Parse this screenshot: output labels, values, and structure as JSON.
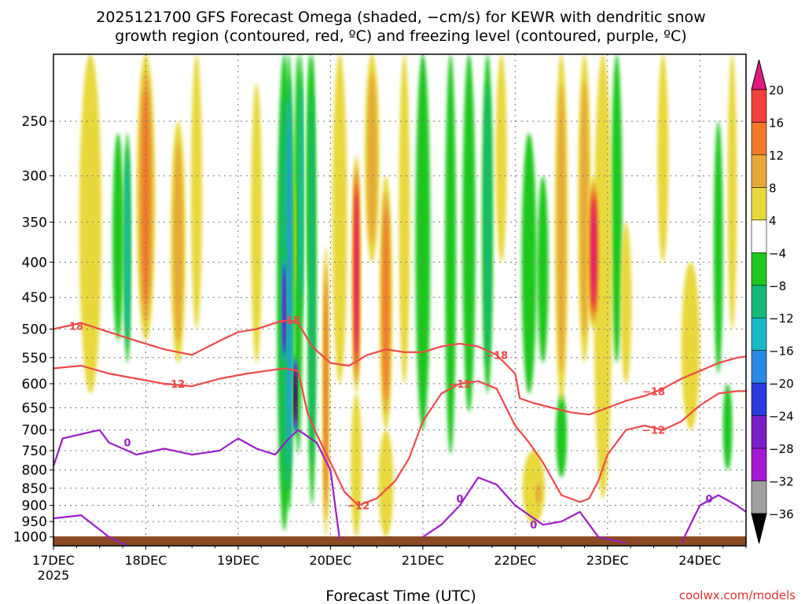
{
  "chart_data": {
    "type": "heatmap",
    "title_line1": "2025121700 GFS Forecast Omega (shaded, −cm/s) for KEWR with dendritic snow",
    "title_line2": "growth region (contoured, red, ºC) and freezing level (contoured, purple, ºC)",
    "xlabel": "Forecast Time (UTC)",
    "ylabel": "",
    "credit": "coolwx.com/models",
    "x_range_days": [
      0,
      7.5
    ],
    "x_ticks": [
      {
        "day": 0,
        "label": "17DEC",
        "sub": "2025"
      },
      {
        "day": 1,
        "label": "18DEC",
        "sub": ""
      },
      {
        "day": 2,
        "label": "19DEC",
        "sub": ""
      },
      {
        "day": 3,
        "label": "20DEC",
        "sub": ""
      },
      {
        "day": 4,
        "label": "21DEC",
        "sub": ""
      },
      {
        "day": 5,
        "label": "22DEC",
        "sub": ""
      },
      {
        "day": 6,
        "label": "23DEC",
        "sub": ""
      },
      {
        "day": 7,
        "label": "24DEC",
        "sub": ""
      }
    ],
    "y_range_hpa": [
      200,
      1030
    ],
    "y_ticks": [
      250,
      300,
      350,
      400,
      450,
      500,
      550,
      600,
      650,
      700,
      750,
      800,
      850,
      900,
      950,
      1000
    ],
    "colorbar": {
      "labels": [
        "20",
        "16",
        "12",
        "8",
        "4",
        "−4",
        "−8",
        "−12",
        "−16",
        "−20",
        "−24",
        "−28",
        "−32",
        "−36"
      ],
      "bins": [
        {
          "range": ">20",
          "color": "#e0197f"
        },
        {
          "range": "16 to 20",
          "color": "#f2403c"
        },
        {
          "range": "12 to 16",
          "color": "#f07a2a"
        },
        {
          "range": "8 to 12",
          "color": "#e6a838"
        },
        {
          "range": "4 to 8",
          "color": "#e8d83a"
        },
        {
          "range": "-4 to 4",
          "color": "#ffffff"
        },
        {
          "range": "-8 to -4",
          "color": "#1ec81e"
        },
        {
          "range": "-12 to -8",
          "color": "#15b876"
        },
        {
          "range": "-16 to -12",
          "color": "#1ab9c8"
        },
        {
          "range": "-20 to -16",
          "color": "#2a88e6"
        },
        {
          "range": "-24 to -20",
          "color": "#2a3adc"
        },
        {
          "range": "-28 to -24",
          "color": "#7a1ec8"
        },
        {
          "range": "-32 to -28",
          "color": "#a519d2"
        },
        {
          "range": "-36 to -32",
          "color": "#a0a0a0"
        },
        {
          "range": "<-36",
          "color": "#000000"
        }
      ]
    },
    "omega_features": [
      {
        "day": 0.4,
        "p_top": 200,
        "p_bot": 620,
        "val": 8,
        "w": 0.12
      },
      {
        "day": 0.7,
        "p_top": 260,
        "p_bot": 520,
        "val": -8,
        "w": 0.06
      },
      {
        "day": 0.8,
        "p_top": 260,
        "p_bot": 560,
        "val": -14,
        "w": 0.04
      },
      {
        "day": 1.0,
        "p_top": 200,
        "p_bot": 520,
        "val": 14,
        "w": 0.1
      },
      {
        "day": 1.35,
        "p_top": 250,
        "p_bot": 560,
        "val": 10,
        "w": 0.08
      },
      {
        "day": 1.55,
        "p_top": 200,
        "p_bot": 500,
        "val": 6,
        "w": 0.06
      },
      {
        "day": 2.2,
        "p_top": 220,
        "p_bot": 560,
        "val": 6,
        "w": 0.06
      },
      {
        "day": 2.5,
        "p_top": 200,
        "p_bot": 980,
        "val": -10,
        "w": 0.08
      },
      {
        "day": 2.55,
        "p_top": 200,
        "p_bot": 920,
        "val": -18,
        "w": 0.05
      },
      {
        "day": 2.65,
        "p_top": 200,
        "p_bot": 760,
        "val": -8,
        "w": 0.05
      },
      {
        "day": 2.78,
        "p_top": 200,
        "p_bot": 440,
        "val": -4.5,
        "w": 0.04
      },
      {
        "day": 2.5,
        "p_top": 380,
        "p_bot": 580,
        "val": -26,
        "w": 0.03
      },
      {
        "day": 2.52,
        "p_top": 480,
        "p_bot": 900,
        "val": -16,
        "w": 0.03
      },
      {
        "day": 2.62,
        "p_top": 540,
        "p_bot": 720,
        "val": -40,
        "w": 0.02
      },
      {
        "day": 2.68,
        "p_top": 200,
        "p_bot": 500,
        "val": -14,
        "w": 0.03
      },
      {
        "day": 2.58,
        "p_top": 300,
        "p_bot": 450,
        "val": 12,
        "w": 0.04
      },
      {
        "day": 2.8,
        "p_top": 200,
        "p_bot": 900,
        "val": -12,
        "w": 0.05
      },
      {
        "day": 2.95,
        "p_top": 380,
        "p_bot": 1000,
        "val": 14,
        "w": 0.04
      },
      {
        "day": 3.1,
        "p_top": 200,
        "p_bot": 600,
        "val": 6,
        "w": 0.08
      },
      {
        "day": 3.28,
        "p_top": 280,
        "p_bot": 620,
        "val": 24,
        "w": 0.05
      },
      {
        "day": 3.28,
        "p_top": 620,
        "p_bot": 1000,
        "val": 6,
        "w": 0.06
      },
      {
        "day": 3.45,
        "p_top": 200,
        "p_bot": 400,
        "val": 10,
        "w": 0.08
      },
      {
        "day": 3.6,
        "p_top": 300,
        "p_bot": 700,
        "val": 16,
        "w": 0.07
      },
      {
        "day": 3.6,
        "p_top": 700,
        "p_bot": 1000,
        "val": 6,
        "w": 0.08
      },
      {
        "day": 3.8,
        "p_top": 200,
        "p_bot": 600,
        "val": 6,
        "w": 0.06
      },
      {
        "day": 4.0,
        "p_top": 200,
        "p_bot": 700,
        "val": -6,
        "w": 0.08
      },
      {
        "day": 4.3,
        "p_top": 200,
        "p_bot": 760,
        "val": -9,
        "w": 0.06
      },
      {
        "day": 4.5,
        "p_top": 200,
        "p_bot": 660,
        "val": -6,
        "w": 0.07
      },
      {
        "day": 4.7,
        "p_top": 200,
        "p_bot": 620,
        "val": -12,
        "w": 0.06
      },
      {
        "day": 4.85,
        "p_top": 200,
        "p_bot": 400,
        "val": 6,
        "w": 0.06
      },
      {
        "day": 5.15,
        "p_top": 260,
        "p_bot": 620,
        "val": -6,
        "w": 0.08
      },
      {
        "day": 5.3,
        "p_top": 300,
        "p_bot": 560,
        "val": -6,
        "w": 0.06
      },
      {
        "day": 5.2,
        "p_top": 750,
        "p_bot": 960,
        "val": 6,
        "w": 0.12
      },
      {
        "day": 5.25,
        "p_top": 830,
        "p_bot": 900,
        "val": 12,
        "w": 0.05
      },
      {
        "day": 5.5,
        "p_top": 200,
        "p_bot": 640,
        "val": 12,
        "w": 0.07
      },
      {
        "day": 5.5,
        "p_top": 620,
        "p_bot": 820,
        "val": -6,
        "w": 0.06
      },
      {
        "day": 5.75,
        "p_top": 200,
        "p_bot": 560,
        "val": 12,
        "w": 0.07
      },
      {
        "day": 5.85,
        "p_top": 300,
        "p_bot": 500,
        "val": 22,
        "w": 0.07
      },
      {
        "day": 5.95,
        "p_top": 200,
        "p_bot": 880,
        "val": 8,
        "w": 0.1
      },
      {
        "day": 6.1,
        "p_top": 200,
        "p_bot": 560,
        "val": -6,
        "w": 0.06
      },
      {
        "day": 6.2,
        "p_top": 350,
        "p_bot": 600,
        "val": 6,
        "w": 0.06
      },
      {
        "day": 6.6,
        "p_top": 200,
        "p_bot": 400,
        "val": 5,
        "w": 0.06
      },
      {
        "day": 6.9,
        "p_top": 400,
        "p_bot": 700,
        "val": 6,
        "w": 0.1
      },
      {
        "day": 7.2,
        "p_top": 250,
        "p_bot": 580,
        "val": -6,
        "w": 0.05
      },
      {
        "day": 7.35,
        "p_top": 200,
        "p_bot": 500,
        "val": 5,
        "w": 0.05
      },
      {
        "day": 7.3,
        "p_top": 600,
        "p_bot": 800,
        "val": -6,
        "w": 0.05
      }
    ],
    "dgz_contours": [
      {
        "label": "-18",
        "points": [
          [
            0,
            500
          ],
          [
            0.3,
            490
          ],
          [
            0.6,
            505
          ],
          [
            0.9,
            520
          ],
          [
            1.2,
            535
          ],
          [
            1.5,
            545
          ],
          [
            1.8,
            520
          ],
          [
            2.0,
            505
          ],
          [
            2.2,
            500
          ],
          [
            2.4,
            490
          ],
          [
            2.55,
            485
          ],
          [
            2.65,
            490
          ],
          [
            2.8,
            530
          ],
          [
            3.0,
            560
          ],
          [
            3.2,
            565
          ],
          [
            3.4,
            545
          ],
          [
            3.6,
            535
          ],
          [
            3.8,
            540
          ],
          [
            4.0,
            540
          ],
          [
            4.2,
            530
          ],
          [
            4.4,
            525
          ],
          [
            4.6,
            530
          ],
          [
            4.8,
            545
          ],
          [
            5.0,
            580
          ],
          [
            5.05,
            630
          ],
          [
            5.2,
            640
          ],
          [
            5.4,
            650
          ],
          [
            5.6,
            660
          ],
          [
            5.8,
            665
          ],
          [
            6.0,
            650
          ],
          [
            6.2,
            635
          ],
          [
            6.4,
            625
          ],
          [
            6.6,
            610
          ],
          [
            6.8,
            590
          ],
          [
            7.0,
            575
          ],
          [
            7.2,
            560
          ],
          [
            7.4,
            550
          ],
          [
            7.5,
            548
          ]
        ],
        "label_at": [
          [
            0.2,
            495
          ],
          [
            2.55,
            485
          ],
          [
            4.8,
            545
          ],
          [
            6.5,
            615
          ]
        ]
      },
      {
        "label": "-12",
        "points": [
          [
            0,
            570
          ],
          [
            0.3,
            565
          ],
          [
            0.6,
            580
          ],
          [
            0.9,
            590
          ],
          [
            1.2,
            600
          ],
          [
            1.5,
            605
          ],
          [
            1.8,
            590
          ],
          [
            2.1,
            580
          ],
          [
            2.3,
            575
          ],
          [
            2.5,
            570
          ],
          [
            2.65,
            575
          ],
          [
            2.75,
            660
          ],
          [
            2.85,
            710
          ],
          [
            3.0,
            780
          ],
          [
            3.15,
            860
          ],
          [
            3.3,
            900
          ],
          [
            3.5,
            880
          ],
          [
            3.7,
            830
          ],
          [
            3.85,
            770
          ],
          [
            4.0,
            680
          ],
          [
            4.2,
            620
          ],
          [
            4.4,
            600
          ],
          [
            4.6,
            595
          ],
          [
            4.8,
            610
          ],
          [
            5.0,
            690
          ],
          [
            5.15,
            730
          ],
          [
            5.3,
            780
          ],
          [
            5.5,
            870
          ],
          [
            5.7,
            890
          ],
          [
            5.8,
            880
          ],
          [
            5.9,
            830
          ],
          [
            6.0,
            760
          ],
          [
            6.2,
            700
          ],
          [
            6.4,
            690
          ],
          [
            6.6,
            700
          ],
          [
            6.8,
            680
          ],
          [
            7.0,
            645
          ],
          [
            7.2,
            620
          ],
          [
            7.4,
            615
          ],
          [
            7.5,
            615
          ]
        ],
        "label_at": [
          [
            1.3,
            600
          ],
          [
            3.3,
            900
          ],
          [
            4.4,
            600
          ],
          [
            6.5,
            700
          ]
        ]
      }
    ],
    "freezing_contours": [
      {
        "label": "0",
        "points": [
          [
            0,
            790
          ],
          [
            0.1,
            720
          ],
          [
            0.3,
            710
          ],
          [
            0.5,
            700
          ],
          [
            0.6,
            730
          ],
          [
            0.9,
            760
          ],
          [
            1.2,
            745
          ],
          [
            1.5,
            760
          ],
          [
            1.8,
            750
          ],
          [
            2.0,
            720
          ],
          [
            2.2,
            745
          ],
          [
            2.4,
            760
          ],
          [
            2.55,
            720
          ],
          [
            2.65,
            700
          ],
          [
            2.85,
            730
          ],
          [
            3.0,
            800
          ],
          [
            3.05,
            900
          ],
          [
            3.1,
            1010
          ]
        ],
        "label_at": [
          [
            0.8,
            730
          ]
        ]
      },
      {
        "label": "0",
        "points": [
          [
            0,
            940
          ],
          [
            0.3,
            930
          ],
          [
            0.6,
            1000
          ],
          [
            0.8,
            1030
          ]
        ],
        "label_at": []
      },
      {
        "label": "0",
        "points": [
          [
            4.0,
            1000
          ],
          [
            4.2,
            960
          ],
          [
            4.4,
            900
          ],
          [
            4.6,
            820
          ],
          [
            4.8,
            840
          ],
          [
            5.0,
            900
          ],
          [
            5.3,
            960
          ],
          [
            5.5,
            950
          ],
          [
            5.7,
            920
          ],
          [
            5.9,
            1000
          ],
          [
            6.2,
            1020
          ]
        ],
        "label_at": [
          [
            4.4,
            880
          ],
          [
            5.2,
            960
          ]
        ]
      },
      {
        "label": "0",
        "points": [
          [
            6.8,
            1020
          ],
          [
            7.0,
            900
          ],
          [
            7.2,
            870
          ],
          [
            7.4,
            900
          ],
          [
            7.5,
            920
          ]
        ],
        "label_at": [
          [
            7.1,
            880
          ]
        ]
      }
    ]
  }
}
